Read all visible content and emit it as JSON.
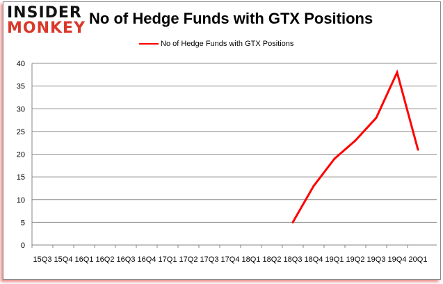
{
  "logo": {
    "line1": "INSIDER",
    "line2": "MONKEY"
  },
  "chart_data": {
    "type": "line",
    "title": "No of Hedge Funds with GTX Positions",
    "categories": [
      "15Q3",
      "15Q4",
      "16Q1",
      "16Q2",
      "16Q3",
      "16Q4",
      "17Q1",
      "17Q2",
      "17Q3",
      "17Q4",
      "18Q1",
      "18Q2",
      "18Q3",
      "18Q4",
      "19Q1",
      "19Q2",
      "19Q3",
      "19Q4",
      "20Q1"
    ],
    "series": [
      {
        "name": "No of Hedge Funds with GTX Positions",
        "color": "#ff0000",
        "values": [
          null,
          null,
          null,
          null,
          null,
          null,
          null,
          null,
          null,
          null,
          null,
          null,
          5,
          13,
          19,
          23,
          28,
          38,
          21
        ]
      }
    ],
    "ylim": [
      0,
      40
    ],
    "yticks": [
      0,
      5,
      10,
      15,
      20,
      25,
      30,
      35,
      40
    ],
    "grid": true,
    "legend": "top"
  }
}
